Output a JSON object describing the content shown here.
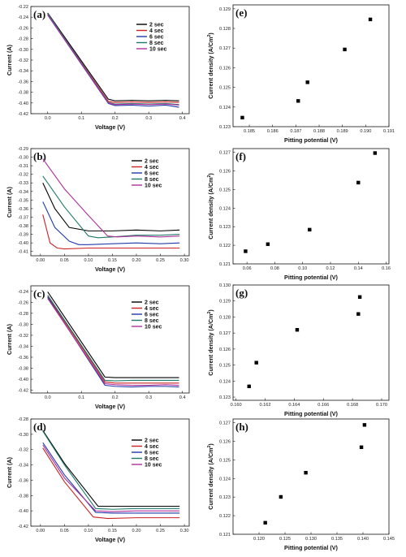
{
  "chart_data": [
    {
      "id": "a",
      "type": "line",
      "panel_label": "(a)",
      "xlabel": "Voltage (V)",
      "ylabel": "Current (A)",
      "xlim": [
        -0.05,
        0.42
      ],
      "ylim": [
        -0.42,
        -0.22
      ],
      "xticks": [
        0.0,
        0.1,
        0.2,
        0.3,
        0.4
      ],
      "xtick_labels": [
        "0.0",
        "0.1",
        "0.2",
        "0.3",
        "0.4"
      ],
      "yticks": [
        -0.22,
        -0.24,
        -0.26,
        -0.28,
        -0.3,
        -0.32,
        -0.34,
        -0.36,
        -0.38,
        -0.4,
        -0.42
      ],
      "ytick_labels": [
        "-0.22",
        "-0.24",
        "-0.26",
        "-0.28",
        "-0.30",
        "-0.32",
        "-0.34",
        "-0.36",
        "-0.38",
        "-0.40",
        "-0.42"
      ],
      "legend_position": "top-right",
      "series": [
        {
          "name": "2 sec",
          "color": "#000000",
          "x": [
            0.0,
            0.18,
            0.2,
            0.25,
            0.3,
            0.35,
            0.39
          ],
          "y": [
            -0.232,
            -0.393,
            -0.396,
            -0.395,
            -0.396,
            -0.395,
            -0.396
          ]
        },
        {
          "name": "4 sec",
          "color": "#cc2222",
          "x": [
            0.0,
            0.18,
            0.2,
            0.25,
            0.3,
            0.35,
            0.39
          ],
          "y": [
            -0.234,
            -0.397,
            -0.399,
            -0.398,
            -0.399,
            -0.398,
            -0.399
          ]
        },
        {
          "name": "6 sec",
          "color": "#1f3aa8",
          "x": [
            0.0,
            0.18,
            0.2,
            0.25,
            0.3,
            0.35,
            0.39
          ],
          "y": [
            -0.236,
            -0.401,
            -0.405,
            -0.404,
            -0.406,
            -0.404,
            -0.408
          ]
        },
        {
          "name": "8 sec",
          "color": "#1f7a6a",
          "x": [
            0.0,
            0.18,
            0.2,
            0.25,
            0.3,
            0.35,
            0.39
          ],
          "y": [
            -0.233,
            -0.399,
            -0.402,
            -0.401,
            -0.402,
            -0.401,
            -0.403
          ]
        },
        {
          "name": "10 sec",
          "color": "#b0309a",
          "x": [
            0.0,
            0.18,
            0.2,
            0.25,
            0.3,
            0.35,
            0.39
          ],
          "y": [
            -0.235,
            -0.4,
            -0.403,
            -0.402,
            -0.403,
            -0.402,
            -0.404
          ]
        }
      ]
    },
    {
      "id": "b",
      "type": "line",
      "panel_label": "(b)",
      "xlabel": "Voltage (V)",
      "ylabel": "Current (A)",
      "xlim": [
        -0.02,
        0.31
      ],
      "ylim": [
        -0.415,
        -0.29
      ],
      "xticks": [
        0.0,
        0.05,
        0.1,
        0.15,
        0.2,
        0.25,
        0.3
      ],
      "xtick_labels": [
        "0.00",
        "0.05",
        "0.10",
        "0.15",
        "0.20",
        "0.25",
        "0.30"
      ],
      "yticks": [
        -0.29,
        -0.3,
        -0.31,
        -0.32,
        -0.33,
        -0.34,
        -0.35,
        -0.36,
        -0.37,
        -0.38,
        -0.39,
        -0.4,
        -0.41
      ],
      "ytick_labels": [
        "-0.29",
        "-0.30",
        "-0.31",
        "-0.32",
        "-0.33",
        "-0.34",
        "-0.35",
        "-0.36",
        "-0.37",
        "-0.38",
        "-0.39",
        "-0.40",
        "-0.41"
      ],
      "legend_position": "top-right",
      "series": [
        {
          "name": "2 sec",
          "color": "#000000",
          "x": [
            0.005,
            0.03,
            0.06,
            0.1,
            0.15,
            0.2,
            0.25,
            0.29
          ],
          "y": [
            -0.33,
            -0.36,
            -0.382,
            -0.386,
            -0.386,
            -0.385,
            -0.386,
            -0.385
          ]
        },
        {
          "name": "4 sec",
          "color": "#cc2222",
          "x": [
            0.005,
            0.02,
            0.035,
            0.05,
            0.1,
            0.15,
            0.2,
            0.25,
            0.29
          ],
          "y": [
            -0.367,
            -0.4,
            -0.406,
            -0.407,
            -0.406,
            -0.406,
            -0.406,
            -0.406,
            -0.406
          ]
        },
        {
          "name": "6 sec",
          "color": "#1f3aa8",
          "x": [
            0.005,
            0.03,
            0.06,
            0.08,
            0.1,
            0.15,
            0.2,
            0.25,
            0.29
          ],
          "y": [
            -0.352,
            -0.382,
            -0.398,
            -0.402,
            -0.402,
            -0.401,
            -0.4,
            -0.401,
            -0.4
          ]
        },
        {
          "name": "8 sec",
          "color": "#1f7a6a",
          "x": [
            0.005,
            0.05,
            0.1,
            0.12,
            0.15,
            0.2,
            0.25,
            0.29
          ],
          "y": [
            -0.322,
            -0.358,
            -0.392,
            -0.394,
            -0.393,
            -0.391,
            -0.391,
            -0.39
          ]
        },
        {
          "name": "10 sec",
          "color": "#b0309a",
          "x": [
            0.005,
            0.05,
            0.1,
            0.14,
            0.16,
            0.2,
            0.25,
            0.29
          ],
          "y": [
            -0.302,
            -0.337,
            -0.368,
            -0.392,
            -0.393,
            -0.392,
            -0.393,
            -0.392
          ]
        }
      ]
    },
    {
      "id": "c",
      "type": "line",
      "panel_label": "(c)",
      "xlabel": "Voltage (V)",
      "ylabel": "Current (A)",
      "xlim": [
        -0.05,
        0.42
      ],
      "ylim": [
        -0.425,
        -0.23
      ],
      "xticks": [
        0.0,
        0.1,
        0.2,
        0.3,
        0.4
      ],
      "xtick_labels": [
        "0.0",
        "0.1",
        "0.2",
        "0.3",
        "0.4"
      ],
      "yticks": [
        -0.24,
        -0.26,
        -0.28,
        -0.3,
        -0.32,
        -0.34,
        -0.36,
        -0.38,
        -0.4,
        -0.42
      ],
      "ytick_labels": [
        "-0.24",
        "-0.26",
        "-0.28",
        "-0.30",
        "-0.32",
        "-0.34",
        "-0.36",
        "-0.38",
        "-0.40",
        "-0.42"
      ],
      "legend_position": "top-right",
      "series": [
        {
          "name": "2 sec",
          "color": "#000000",
          "x": [
            0.0,
            0.17,
            0.2,
            0.25,
            0.3,
            0.35,
            0.39
          ],
          "y": [
            -0.241,
            -0.396,
            -0.397,
            -0.397,
            -0.397,
            -0.397,
            -0.397
          ]
        },
        {
          "name": "4 sec",
          "color": "#cc2222",
          "x": [
            0.0,
            0.17,
            0.2,
            0.25,
            0.3,
            0.35,
            0.39
          ],
          "y": [
            -0.249,
            -0.405,
            -0.407,
            -0.407,
            -0.407,
            -0.407,
            -0.407
          ]
        },
        {
          "name": "6 sec",
          "color": "#1f3aa8",
          "x": [
            0.0,
            0.17,
            0.2,
            0.25,
            0.3,
            0.35,
            0.39
          ],
          "y": [
            -0.251,
            -0.411,
            -0.413,
            -0.414,
            -0.413,
            -0.413,
            -0.414
          ]
        },
        {
          "name": "8 sec",
          "color": "#1f7a6a",
          "x": [
            0.0,
            0.17,
            0.2,
            0.25,
            0.3,
            0.35,
            0.39
          ],
          "y": [
            -0.247,
            -0.402,
            -0.403,
            -0.402,
            -0.402,
            -0.402,
            -0.402
          ]
        },
        {
          "name": "10 sec",
          "color": "#b0309a",
          "x": [
            0.0,
            0.17,
            0.2,
            0.25,
            0.3,
            0.35,
            0.39
          ],
          "y": [
            -0.253,
            -0.408,
            -0.41,
            -0.411,
            -0.411,
            -0.41,
            -0.411
          ]
        }
      ]
    },
    {
      "id": "d",
      "type": "line",
      "panel_label": "(d)",
      "xlabel": "Voltage (V)",
      "ylabel": "Current (A)",
      "xlim": [
        -0.02,
        0.31
      ],
      "ylim": [
        -0.42,
        -0.28
      ],
      "xticks": [
        0.0,
        0.05,
        0.1,
        0.15,
        0.2,
        0.25,
        0.3
      ],
      "xtick_labels": [
        "0.00",
        "0.05",
        "0.10",
        "0.15",
        "0.20",
        "0.25",
        "0.30"
      ],
      "yticks": [
        -0.28,
        -0.3,
        -0.32,
        -0.34,
        -0.36,
        -0.38,
        -0.4,
        -0.42
      ],
      "ytick_labels": [
        "-0.28",
        "-0.30",
        "-0.32",
        "-0.34",
        "-0.36",
        "-0.38",
        "-0.40",
        "-0.42"
      ],
      "legend_position": "top-right",
      "series": [
        {
          "name": "2 sec",
          "color": "#000000",
          "x": [
            0.005,
            0.05,
            0.12,
            0.15,
            0.2,
            0.25,
            0.29
          ],
          "y": [
            -0.295,
            -0.338,
            -0.394,
            -0.394,
            -0.394,
            -0.394,
            -0.394
          ]
        },
        {
          "name": "4 sec",
          "color": "#cc2222",
          "x": [
            0.005,
            0.05,
            0.11,
            0.14,
            0.2,
            0.25,
            0.29
          ],
          "y": [
            -0.318,
            -0.362,
            -0.408,
            -0.41,
            -0.409,
            -0.409,
            -0.409
          ]
        },
        {
          "name": "6 sec",
          "color": "#1f3aa8",
          "x": [
            0.005,
            0.05,
            0.115,
            0.15,
            0.2,
            0.25,
            0.29
          ],
          "y": [
            -0.311,
            -0.353,
            -0.402,
            -0.403,
            -0.403,
            -0.403,
            -0.403
          ]
        },
        {
          "name": "8 sec",
          "color": "#1f7a6a",
          "x": [
            0.005,
            0.05,
            0.115,
            0.15,
            0.2,
            0.25,
            0.29
          ],
          "y": [
            -0.296,
            -0.34,
            -0.397,
            -0.398,
            -0.397,
            -0.397,
            -0.397
          ]
        },
        {
          "name": "10 sec",
          "color": "#b0309a",
          "x": [
            0.005,
            0.05,
            0.115,
            0.15,
            0.2,
            0.25,
            0.29
          ],
          "y": [
            -0.314,
            -0.357,
            -0.4,
            -0.401,
            -0.4,
            -0.4,
            -0.4
          ]
        }
      ]
    },
    {
      "id": "e",
      "type": "scatter",
      "panel_label": "(e)",
      "xlabel": "Pitting potential (V)",
      "ylabel": "Current density (A/Cm",
      "ylabel_superscript": "2",
      "ylabel_suffix": ")",
      "xlim": [
        0.1843,
        0.191
      ],
      "ylim": [
        0.123,
        0.1292
      ],
      "xticks": [
        0.185,
        0.186,
        0.187,
        0.188,
        0.189,
        0.19,
        0.191
      ],
      "xtick_labels": [
        "0.185",
        "0.186",
        "0.187",
        "0.188",
        "0.189",
        "0.190",
        "0.191"
      ],
      "yticks": [
        0.123,
        0.124,
        0.125,
        0.126,
        0.127,
        0.128,
        0.129
      ],
      "ytick_labels": [
        "0.123",
        "0.124",
        "0.125",
        "0.126",
        "0.127",
        "0.128",
        "0.129"
      ],
      "series": [
        {
          "color": "#000000",
          "x": [
            0.1847,
            0.1871,
            0.1875,
            0.1891,
            0.1902
          ],
          "y": [
            0.12346,
            0.12431,
            0.12526,
            0.12693,
            0.12846
          ]
        }
      ]
    },
    {
      "id": "f",
      "type": "scatter",
      "panel_label": "(f)",
      "xlabel": "Pitting potential (V)",
      "ylabel": "Current density (A/Cm",
      "ylabel_superscript": "2",
      "ylabel_suffix": ")",
      "xlim": [
        0.05,
        0.162
      ],
      "ylim": [
        0.121,
        0.1272
      ],
      "xticks": [
        0.06,
        0.08,
        0.1,
        0.12,
        0.14,
        0.16
      ],
      "xtick_labels": [
        "0.06",
        "0.08",
        "0.10",
        "0.12",
        "0.14",
        "0.16"
      ],
      "yticks": [
        0.121,
        0.122,
        0.123,
        0.124,
        0.125,
        0.126,
        0.127
      ],
      "ytick_labels": [
        "0.121",
        "0.122",
        "0.123",
        "0.124",
        "0.125",
        "0.126",
        "0.127"
      ],
      "series": [
        {
          "color": "#000000",
          "x": [
            0.059,
            0.075,
            0.105,
            0.14,
            0.152
          ],
          "y": [
            0.12168,
            0.12206,
            0.12284,
            0.12537,
            0.12696
          ]
        }
      ]
    },
    {
      "id": "g",
      "type": "scatter",
      "panel_label": "(g)",
      "xlabel": "Pitting potential (V)",
      "ylabel": "Current density (A/Cm",
      "ylabel_superscript": "2",
      "ylabel_suffix": ")",
      "xlim": [
        0.1598,
        0.1705
      ],
      "ylim": [
        0.1228,
        0.13
      ],
      "xticks": [
        0.16,
        0.162,
        0.164,
        0.166,
        0.168,
        0.17
      ],
      "xtick_labels": [
        "0.160",
        "0.162",
        "0.164",
        "0.166",
        "0.168",
        "0.170"
      ],
      "yticks": [
        0.123,
        0.124,
        0.125,
        0.126,
        0.127,
        0.128,
        0.129,
        0.13
      ],
      "ytick_labels": [
        "0.123",
        "0.124",
        "0.125",
        "0.126",
        "0.127",
        "0.128",
        "0.129",
        "0.130"
      ],
      "series": [
        {
          "color": "#000000",
          "x": [
            0.1609,
            0.1614,
            0.1642,
            0.1684,
            0.1685
          ],
          "y": [
            0.12367,
            0.12515,
            0.1272,
            0.12819,
            0.12925
          ]
        }
      ]
    },
    {
      "id": "h",
      "type": "scatter",
      "panel_label": "(h)",
      "xlabel": "Pitting potential (V)",
      "ylabel": "Current density (A/Cm",
      "ylabel_superscript": "2",
      "ylabel_suffix": ")",
      "xlim": [
        0.115,
        0.145
      ],
      "ylim": [
        0.121,
        0.1272
      ],
      "xticks": [
        0.12,
        0.125,
        0.13,
        0.135,
        0.14,
        0.145
      ],
      "xtick_labels": [
        "0.120",
        "0.125",
        "0.130",
        "0.135",
        "0.140",
        "0.145"
      ],
      "yticks": [
        0.121,
        0.122,
        0.123,
        0.124,
        0.125,
        0.126,
        0.127
      ],
      "ytick_labels": [
        "0.121",
        "0.122",
        "0.123",
        "0.124",
        "0.125",
        "0.126",
        "0.127"
      ],
      "series": [
        {
          "color": "#000000",
          "x": [
            0.1212,
            0.1242,
            0.129,
            0.1397,
            0.1403
          ],
          "y": [
            0.12162,
            0.12301,
            0.12431,
            0.12568,
            0.12688
          ]
        }
      ]
    }
  ]
}
